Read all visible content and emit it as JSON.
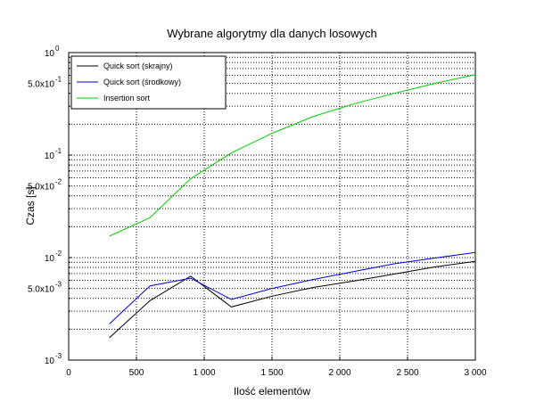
{
  "chart_data": {
    "type": "line",
    "title": "Wybrane algorytmy dla danych losowych",
    "xlabel": "Ilość elementów",
    "ylabel": "Czas [s]",
    "xlim": [
      0,
      3000
    ],
    "ylim": [
      0.001,
      1
    ],
    "yscale": "log",
    "grid": true,
    "legend_position": "top-left",
    "x_ticks": [
      0,
      500,
      1000,
      1500,
      2000,
      2500,
      3000
    ],
    "x_tick_labels": [
      "0",
      "500",
      "1 000",
      "1 500",
      "2 000",
      "2 500",
      "3 000"
    ],
    "y_ticks": [
      {
        "value": 0.001,
        "base": "10",
        "exp": "-3"
      },
      {
        "value": 0.005,
        "base": "5.0x10",
        "exp": "-3"
      },
      {
        "value": 0.01,
        "base": "10",
        "exp": "-2"
      },
      {
        "value": 0.05,
        "base": "5.0x10",
        "exp": "-2"
      },
      {
        "value": 0.1,
        "base": "10",
        "exp": "-1"
      },
      {
        "value": 0.5,
        "base": "5.0x10",
        "exp": "-1"
      },
      {
        "value": 1,
        "base": "10",
        "exp": "0"
      }
    ],
    "series": [
      {
        "name": "Quick sort (skrajny)",
        "color": "#000000",
        "x": [
          300,
          600,
          900,
          1200,
          1500,
          1800,
          2100,
          2400,
          2700,
          3000
        ],
        "y": [
          0.00165,
          0.0038,
          0.0066,
          0.0033,
          0.0042,
          0.0051,
          0.0059,
          0.0069,
          0.0081,
          0.0092
        ]
      },
      {
        "name": "Quick sort (środkowy)",
        "color": "#0000cc",
        "x": [
          300,
          600,
          900,
          1200,
          1500,
          1800,
          2100,
          2400,
          2700,
          3000
        ],
        "y": [
          0.00225,
          0.0053,
          0.0063,
          0.0039,
          0.005,
          0.0061,
          0.0073,
          0.0087,
          0.0099,
          0.0112
        ]
      },
      {
        "name": "Insertion sort",
        "color": "#00cc00",
        "x": [
          300,
          600,
          900,
          1200,
          1500,
          1800,
          2100,
          2400,
          2700,
          3000
        ],
        "y": [
          0.0162,
          0.0245,
          0.059,
          0.105,
          0.163,
          0.237,
          0.315,
          0.4,
          0.5,
          0.61
        ]
      }
    ]
  }
}
